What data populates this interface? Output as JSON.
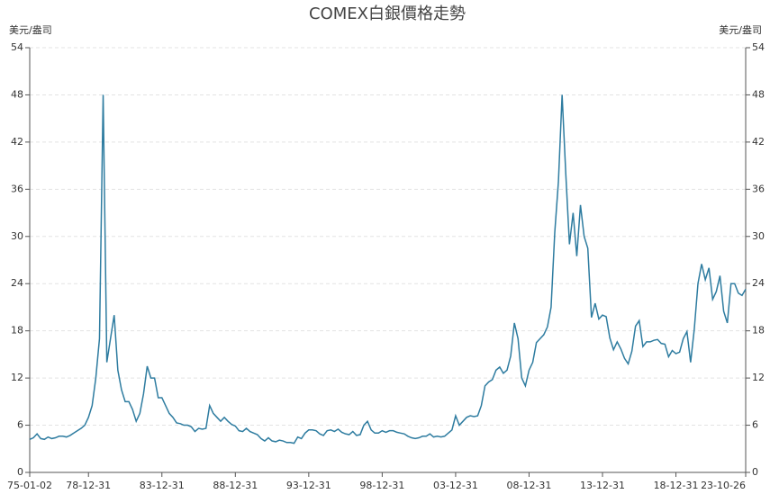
{
  "chart_data": {
    "type": "line",
    "title": "COMEX白銀價格走勢",
    "y_unit": "美元/盎司",
    "categories": [
      "75-01-02",
      null,
      null,
      null,
      null,
      null,
      null,
      null,
      null,
      null,
      null,
      null,
      null,
      null,
      null,
      null,
      "78-12-31",
      null,
      null,
      null,
      null,
      null,
      null,
      null,
      null,
      null,
      null,
      null,
      null,
      null,
      null,
      null,
      null,
      null,
      null,
      null,
      "83-12-31",
      null,
      null,
      null,
      null,
      null,
      null,
      null,
      null,
      null,
      null,
      null,
      null,
      null,
      null,
      null,
      null,
      null,
      null,
      null,
      "88-12-31",
      null,
      null,
      null,
      null,
      null,
      null,
      null,
      null,
      null,
      null,
      null,
      null,
      null,
      null,
      null,
      null,
      null,
      null,
      null,
      "93-12-31",
      null,
      null,
      null,
      null,
      null,
      null,
      null,
      null,
      null,
      null,
      null,
      null,
      null,
      null,
      null,
      null,
      null,
      null,
      null,
      "98-12-31",
      null,
      null,
      null,
      null,
      null,
      null,
      null,
      null,
      null,
      null,
      null,
      null,
      null,
      null,
      null,
      null,
      null,
      null,
      null,
      "03-12-31",
      null,
      null,
      null,
      null,
      null,
      null,
      null,
      null,
      null,
      null,
      null,
      null,
      null,
      null,
      null,
      null,
      null,
      null,
      null,
      "08-12-31",
      null,
      null,
      null,
      null,
      null,
      null,
      null,
      null,
      null,
      null,
      null,
      null,
      null,
      null,
      null,
      null,
      null,
      null,
      null,
      "13-12-31",
      null,
      null,
      null,
      null,
      null,
      null,
      null,
      null,
      null,
      null,
      null,
      null,
      null,
      null,
      null,
      null,
      null,
      null,
      null,
      "18-12-31",
      null,
      null,
      null,
      null,
      null,
      null,
      null,
      null,
      null,
      null,
      null,
      null,
      null,
      null,
      null,
      null,
      null,
      null,
      "23-10-26"
    ],
    "values": [
      4.2,
      4.4,
      4.9,
      4.3,
      4.2,
      4.5,
      4.3,
      4.4,
      4.6,
      4.6,
      4.5,
      4.7,
      5.0,
      5.3,
      5.6,
      6.0,
      7.0,
      8.5,
      12.0,
      17.0,
      48.0,
      14.0,
      17.0,
      20.0,
      13.0,
      10.5,
      9.0,
      9.0,
      8.0,
      6.5,
      7.5,
      10.0,
      13.5,
      12.0,
      12.0,
      9.5,
      9.5,
      8.5,
      7.5,
      7.0,
      6.3,
      6.2,
      6.0,
      6.0,
      5.8,
      5.2,
      5.6,
      5.5,
      5.6,
      8.5,
      7.5,
      7.0,
      6.5,
      7.0,
      6.5,
      6.1,
      5.9,
      5.3,
      5.2,
      5.6,
      5.2,
      5.0,
      4.8,
      4.3,
      4.0,
      4.4,
      4.0,
      3.9,
      4.1,
      4.0,
      3.8,
      3.8,
      3.7,
      4.5,
      4.3,
      5.0,
      5.4,
      5.4,
      5.3,
      4.9,
      4.7,
      5.3,
      5.4,
      5.2,
      5.5,
      5.1,
      4.9,
      4.8,
      5.2,
      4.7,
      4.8,
      6.0,
      6.5,
      5.4,
      5.0,
      5.0,
      5.3,
      5.1,
      5.3,
      5.3,
      5.1,
      5.0,
      4.9,
      4.6,
      4.4,
      4.3,
      4.4,
      4.6,
      4.6,
      4.9,
      4.5,
      4.6,
      4.5,
      4.6,
      5.0,
      5.4,
      7.2,
      6.0,
      6.5,
      7.0,
      7.2,
      7.1,
      7.2,
      8.5,
      11.0,
      11.5,
      11.8,
      13.0,
      13.4,
      12.6,
      13.0,
      14.8,
      19.0,
      17.0,
      12.0,
      11.0,
      13.0,
      14.0,
      16.5,
      17.0,
      17.5,
      18.5,
      21.0,
      30.5,
      37.0,
      48.0,
      38.0,
      29.0,
      33.0,
      27.5,
      34.0,
      30.0,
      28.5,
      19.7,
      21.5,
      19.5,
      20.0,
      19.8,
      17.1,
      15.6,
      16.6,
      15.7,
      14.5,
      13.8,
      15.4,
      18.6,
      19.3,
      16.0,
      16.6,
      16.6,
      16.8,
      16.9,
      16.4,
      16.3,
      14.7,
      15.5,
      15.1,
      15.3,
      17.0,
      17.9,
      14.0,
      18.2,
      24.0,
      26.5,
      24.5,
      26.0,
      22.0,
      23.0,
      25.0,
      20.5,
      19.0,
      24.0,
      24.0,
      22.8,
      22.5,
      23.3
    ],
    "color": "#2e7ca0",
    "ylim": [
      0,
      54
    ],
    "yticks": [
      0,
      6,
      12,
      18,
      24,
      30,
      36,
      42,
      48,
      54
    ],
    "grid": true
  }
}
